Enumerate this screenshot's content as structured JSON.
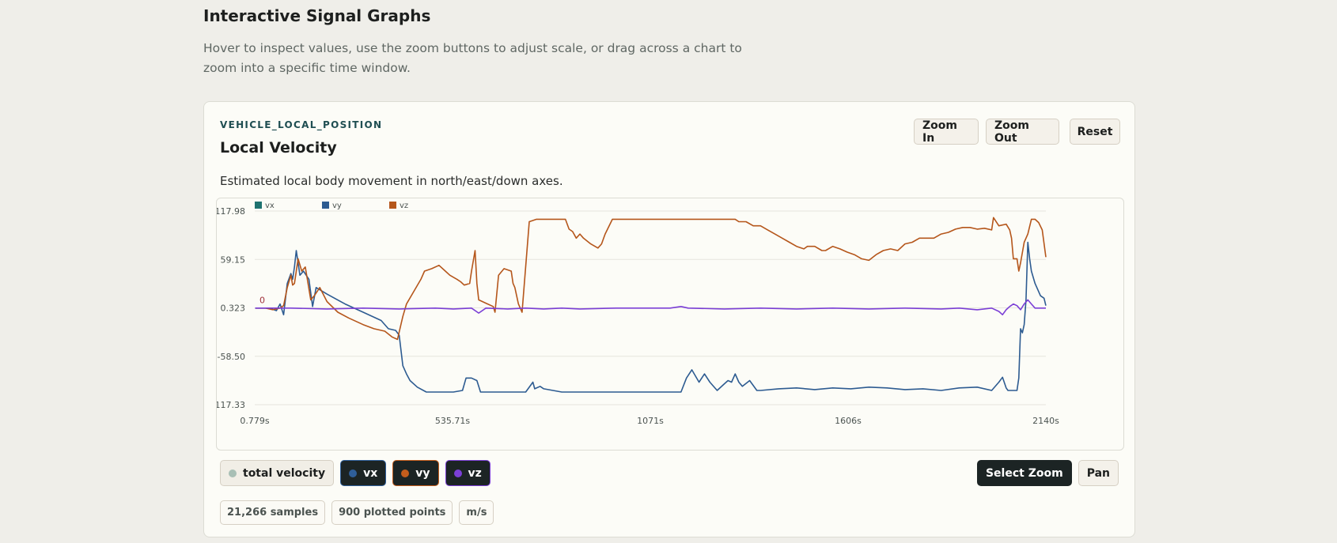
{
  "page": {
    "title": "Interactive Signal Graphs",
    "description": "Hover to inspect values, use the zoom buttons to adjust scale, or drag across a chart to zoom into a specific time window."
  },
  "card": {
    "eyebrow": "VEHICLE_LOCAL_POSITION",
    "title": "Local Velocity",
    "description": "Estimated local body movement in north/east/down axes.",
    "zoom_in_label": "Zoom In",
    "zoom_out_label": "Zoom Out",
    "reset_label": "Reset"
  },
  "toggles": [
    {
      "label": "total velocity",
      "active": false,
      "color": "#a8bfb5"
    },
    {
      "label": "vx",
      "active": true,
      "color": "#2f5f9a"
    },
    {
      "label": "vy",
      "active": true,
      "color": "#c45d1c"
    },
    {
      "label": "vz",
      "active": true,
      "color": "#7b3fd6"
    }
  ],
  "modes": {
    "select_zoom_label": "Select Zoom",
    "pan_label": "Pan"
  },
  "stats": {
    "samples": "21,266 samples",
    "plotted": "900 plotted points",
    "unit": "m/s"
  },
  "chart_data": {
    "type": "line",
    "title": "",
    "xlabel": "",
    "ylabel": "",
    "x_unit": "s",
    "xlim": [
      0.779,
      2140
    ],
    "ylim": [
      -117.33,
      117.98
    ],
    "x_ticks": [
      "0.779s",
      "535.71s",
      "1071s",
      "1606s",
      "2140s"
    ],
    "y_ticks": [
      "117.98",
      "59.15",
      "0.323",
      "-58.50",
      "-117.33"
    ],
    "grid": true,
    "legend_position": "top-left",
    "annotation": {
      "label": "0",
      "x": 0.779,
      "y": 0.323,
      "color": "#a0303a"
    },
    "legend": [
      {
        "name": "vx",
        "color": "#1e7270"
      },
      {
        "name": "vy",
        "color": "#2d5b91"
      },
      {
        "name": "vz",
        "color": "#b5561b"
      }
    ],
    "series": [
      {
        "name": "vx-line",
        "color": "#2d5b91",
        "points": [
          [
            1,
            0
          ],
          [
            40,
            0
          ],
          [
            60,
            -3
          ],
          [
            70,
            5
          ],
          [
            80,
            -8
          ],
          [
            90,
            30
          ],
          [
            100,
            42
          ],
          [
            105,
            35
          ],
          [
            110,
            50
          ],
          [
            115,
            70
          ],
          [
            120,
            55
          ],
          [
            125,
            40
          ],
          [
            135,
            45
          ],
          [
            150,
            35
          ],
          [
            160,
            2
          ],
          [
            170,
            25
          ],
          [
            200,
            17
          ],
          [
            250,
            5
          ],
          [
            300,
            -5
          ],
          [
            350,
            -15
          ],
          [
            370,
            -25
          ],
          [
            390,
            -27
          ],
          [
            400,
            -33
          ],
          [
            410,
            -70
          ],
          [
            420,
            -80
          ],
          [
            430,
            -88
          ],
          [
            450,
            -96
          ],
          [
            475,
            -102
          ],
          [
            500,
            -102
          ],
          [
            550,
            -102
          ],
          [
            575,
            -100
          ],
          [
            585,
            -85
          ],
          [
            600,
            -85
          ],
          [
            615,
            -88
          ],
          [
            625,
            -102
          ],
          [
            700,
            -102
          ],
          [
            750,
            -102
          ],
          [
            770,
            -90
          ],
          [
            775,
            -98
          ],
          [
            790,
            -95
          ],
          [
            800,
            -98
          ],
          [
            850,
            -102
          ],
          [
            900,
            -102
          ],
          [
            1000,
            -102
          ],
          [
            1100,
            -102
          ],
          [
            1180,
            -102
          ],
          [
            1195,
            -85
          ],
          [
            1210,
            -75
          ],
          [
            1230,
            -90
          ],
          [
            1245,
            -80
          ],
          [
            1260,
            -90
          ],
          [
            1280,
            -100
          ],
          [
            1300,
            -92
          ],
          [
            1310,
            -88
          ],
          [
            1320,
            -90
          ],
          [
            1330,
            -80
          ],
          [
            1340,
            -90
          ],
          [
            1350,
            -95
          ],
          [
            1370,
            -88
          ],
          [
            1390,
            -100
          ],
          [
            1400,
            -100
          ],
          [
            1450,
            -98
          ],
          [
            1500,
            -97
          ],
          [
            1550,
            -99
          ],
          [
            1600,
            -97
          ],
          [
            1650,
            -98
          ],
          [
            1700,
            -96
          ],
          [
            1750,
            -97
          ],
          [
            1800,
            -99
          ],
          [
            1850,
            -98
          ],
          [
            1900,
            -100
          ],
          [
            1950,
            -97
          ],
          [
            2000,
            -96
          ],
          [
            2040,
            -100
          ],
          [
            2060,
            -90
          ],
          [
            2070,
            -84
          ],
          [
            2080,
            -97
          ],
          [
            2085,
            -100
          ],
          [
            2110,
            -100
          ],
          [
            2115,
            -85
          ],
          [
            2120,
            -25
          ],
          [
            2125,
            -30
          ],
          [
            2130,
            -20
          ],
          [
            2135,
            10
          ],
          [
            2140,
            80
          ],
          [
            2145,
            60
          ],
          [
            2150,
            45
          ],
          [
            2160,
            30
          ],
          [
            2175,
            15
          ],
          [
            2185,
            12
          ],
          [
            2190,
            3
          ]
        ]
      },
      {
        "name": "vy-line",
        "color": "#b5561b",
        "points": [
          [
            1,
            0
          ],
          [
            30,
            0
          ],
          [
            50,
            -2
          ],
          [
            70,
            0
          ],
          [
            80,
            3
          ],
          [
            90,
            25
          ],
          [
            100,
            40
          ],
          [
            105,
            28
          ],
          [
            110,
            30
          ],
          [
            120,
            60
          ],
          [
            130,
            45
          ],
          [
            140,
            50
          ],
          [
            155,
            10
          ],
          [
            165,
            15
          ],
          [
            180,
            25
          ],
          [
            200,
            8
          ],
          [
            230,
            -5
          ],
          [
            260,
            -12
          ],
          [
            300,
            -20
          ],
          [
            330,
            -25
          ],
          [
            360,
            -28
          ],
          [
            380,
            -35
          ],
          [
            395,
            -38
          ],
          [
            410,
            -10
          ],
          [
            420,
            5
          ],
          [
            440,
            20
          ],
          [
            460,
            35
          ],
          [
            470,
            45
          ],
          [
            490,
            48
          ],
          [
            510,
            52
          ],
          [
            525,
            46
          ],
          [
            540,
            40
          ],
          [
            560,
            35
          ],
          [
            570,
            32
          ],
          [
            580,
            28
          ],
          [
            595,
            30
          ],
          [
            600,
            45
          ],
          [
            610,
            70
          ],
          [
            615,
            30
          ],
          [
            620,
            10
          ],
          [
            640,
            6
          ],
          [
            660,
            2
          ],
          [
            665,
            -5
          ],
          [
            675,
            40
          ],
          [
            690,
            48
          ],
          [
            710,
            45
          ],
          [
            715,
            30
          ],
          [
            720,
            25
          ],
          [
            730,
            5
          ],
          [
            740,
            -5
          ],
          [
            760,
            105
          ],
          [
            780,
            108
          ],
          [
            790,
            108
          ],
          [
            820,
            108
          ],
          [
            840,
            108
          ],
          [
            850,
            108
          ],
          [
            860,
            108
          ],
          [
            870,
            96
          ],
          [
            880,
            93
          ],
          [
            890,
            85
          ],
          [
            900,
            90
          ],
          [
            910,
            85
          ],
          [
            930,
            78
          ],
          [
            950,
            73
          ],
          [
            960,
            78
          ],
          [
            970,
            90
          ],
          [
            990,
            108
          ],
          [
            1000,
            108
          ],
          [
            1050,
            108
          ],
          [
            1100,
            108
          ],
          [
            1150,
            108
          ],
          [
            1200,
            108
          ],
          [
            1250,
            108
          ],
          [
            1300,
            108
          ],
          [
            1330,
            108
          ],
          [
            1340,
            105
          ],
          [
            1360,
            105
          ],
          [
            1380,
            100
          ],
          [
            1400,
            100
          ],
          [
            1420,
            95
          ],
          [
            1440,
            90
          ],
          [
            1460,
            85
          ],
          [
            1480,
            80
          ],
          [
            1500,
            75
          ],
          [
            1520,
            72
          ],
          [
            1530,
            75
          ],
          [
            1550,
            75
          ],
          [
            1570,
            70
          ],
          [
            1580,
            70
          ],
          [
            1600,
            75
          ],
          [
            1620,
            72
          ],
          [
            1640,
            68
          ],
          [
            1660,
            65
          ],
          [
            1680,
            60
          ],
          [
            1700,
            58
          ],
          [
            1720,
            65
          ],
          [
            1740,
            70
          ],
          [
            1760,
            72
          ],
          [
            1780,
            70
          ],
          [
            1800,
            78
          ],
          [
            1820,
            80
          ],
          [
            1840,
            85
          ],
          [
            1860,
            85
          ],
          [
            1880,
            85
          ],
          [
            1900,
            90
          ],
          [
            1920,
            92
          ],
          [
            1940,
            96
          ],
          [
            1960,
            98
          ],
          [
            1980,
            98
          ],
          [
            2000,
            96
          ],
          [
            2020,
            97
          ],
          [
            2040,
            95
          ],
          [
            2045,
            110
          ],
          [
            2060,
            100
          ],
          [
            2080,
            102
          ],
          [
            2090,
            95
          ],
          [
            2095,
            85
          ],
          [
            2100,
            60
          ],
          [
            2110,
            60
          ],
          [
            2115,
            45
          ],
          [
            2120,
            55
          ],
          [
            2130,
            80
          ],
          [
            2140,
            90
          ],
          [
            2150,
            108
          ],
          [
            2160,
            108
          ],
          [
            2170,
            104
          ],
          [
            2180,
            95
          ],
          [
            2190,
            62
          ]
        ]
      },
      {
        "name": "vz-line",
        "color": "#7b3fd6",
        "points": [
          [
            1,
            0
          ],
          [
            100,
            0
          ],
          [
            200,
            -1
          ],
          [
            300,
            0
          ],
          [
            400,
            -1
          ],
          [
            500,
            0
          ],
          [
            550,
            -1
          ],
          [
            600,
            0
          ],
          [
            620,
            -6
          ],
          [
            640,
            0
          ],
          [
            700,
            -1
          ],
          [
            750,
            0
          ],
          [
            800,
            -1
          ],
          [
            850,
            0
          ],
          [
            900,
            -1
          ],
          [
            1000,
            0
          ],
          [
            1100,
            0
          ],
          [
            1150,
            0
          ],
          [
            1180,
            2
          ],
          [
            1200,
            0
          ],
          [
            1300,
            -1
          ],
          [
            1400,
            0
          ],
          [
            1500,
            -1
          ],
          [
            1600,
            0
          ],
          [
            1700,
            -1
          ],
          [
            1800,
            0
          ],
          [
            1900,
            -1
          ],
          [
            1950,
            0
          ],
          [
            2000,
            -2
          ],
          [
            2040,
            0
          ],
          [
            2060,
            -4
          ],
          [
            2070,
            -8
          ],
          [
            2080,
            -2
          ],
          [
            2090,
            2
          ],
          [
            2100,
            5
          ],
          [
            2110,
            3
          ],
          [
            2120,
            -2
          ],
          [
            2130,
            5
          ],
          [
            2140,
            10
          ],
          [
            2150,
            5
          ],
          [
            2160,
            0
          ],
          [
            2190,
            0
          ]
        ]
      }
    ]
  }
}
